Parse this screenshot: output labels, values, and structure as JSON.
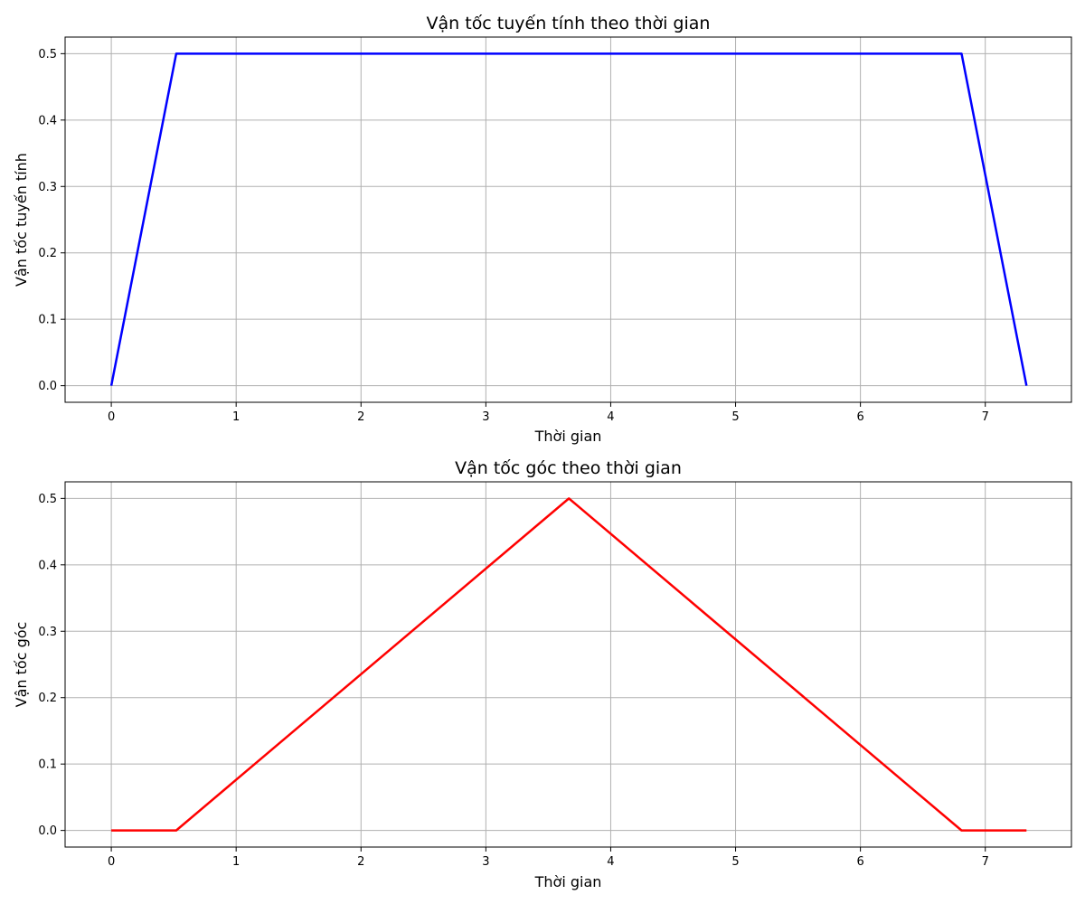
{
  "chart_data": [
    {
      "type": "line",
      "title": "Vận tốc tuyến tính theo thời gian",
      "xlabel": "Thời gian",
      "ylabel": "Vận tốc tuyến tính",
      "xlim": [
        -0.37,
        7.69
      ],
      "ylim": [
        -0.025,
        0.525
      ],
      "xticks": [
        "0",
        "1",
        "2",
        "3",
        "4",
        "5",
        "6",
        "7"
      ],
      "yticks": [
        "0.0",
        "0.1",
        "0.2",
        "0.3",
        "0.4",
        "0.5"
      ],
      "grid": true,
      "series": [
        {
          "color": "#0000ff",
          "x": [
            0,
            0.52,
            6.81,
            7.33
          ],
          "y": [
            0,
            0.5,
            0.5,
            0
          ]
        }
      ]
    },
    {
      "type": "line",
      "title": "Vận tốc góc theo thời gian",
      "xlabel": "Thời gian",
      "ylabel": "Vận tốc góc",
      "xlim": [
        -0.37,
        7.69
      ],
      "ylim": [
        -0.025,
        0.525
      ],
      "xticks": [
        "0",
        "1",
        "2",
        "3",
        "4",
        "5",
        "6",
        "7"
      ],
      "yticks": [
        "0.0",
        "0.1",
        "0.2",
        "0.3",
        "0.4",
        "0.5"
      ],
      "grid": true,
      "series": [
        {
          "color": "#ff0000",
          "x": [
            0,
            0.52,
            3.665,
            6.81,
            7.33
          ],
          "y": [
            0,
            0,
            0.5,
            0,
            0
          ]
        }
      ]
    }
  ]
}
